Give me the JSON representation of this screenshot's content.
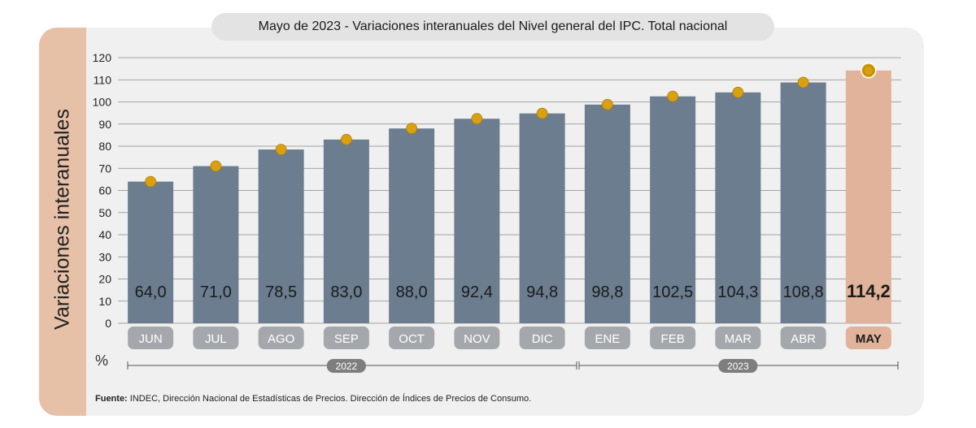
{
  "title": "Mayo de 2023 - Variaciones interanuales del Nivel general del IPC. Total nacional",
  "footer": {
    "label": "Fuente:",
    "text": " INDEC, Dirección Nacional de Estadísticas de Precios. Dirección de Índices de Precios de Consumo."
  },
  "chart_data": {
    "type": "bar",
    "title": "Mayo de 2023 - Variaciones interanuales del Nivel general del IPC. Total nacional",
    "ylabel": "Variaciones interanuales",
    "yunit": "%",
    "xlabel": "",
    "ylim": [
      0,
      120
    ],
    "yticks": [
      0,
      10,
      20,
      30,
      40,
      50,
      60,
      70,
      80,
      90,
      100,
      110,
      120
    ],
    "categories": [
      "JUN",
      "JUL",
      "AGO",
      "SEP",
      "OCT",
      "NOV",
      "DIC",
      "ENE",
      "FEB",
      "MAR",
      "ABR",
      "MAY"
    ],
    "values": [
      64.0,
      71.0,
      78.5,
      83.0,
      88.0,
      92.4,
      94.8,
      98.8,
      102.5,
      104.3,
      108.8,
      114.2
    ],
    "value_labels": [
      "64,0",
      "71,0",
      "78,5",
      "83,0",
      "88,0",
      "92,4",
      "94,8",
      "98,8",
      "102,5",
      "104,3",
      "108,8",
      "114,2"
    ],
    "highlight_index": 11,
    "groups": [
      {
        "label": "2022",
        "from": 0,
        "to": 6
      },
      {
        "label": "2023",
        "from": 7,
        "to": 11
      }
    ],
    "grid": true,
    "colors": {
      "bar": "#6c7d8f",
      "bar_highlight": "#e0b39a",
      "marker": "#d9a012",
      "marker_stroke": "#b07e00",
      "pill": "#a4a8ad",
      "group_pill": "#7e7e7e",
      "grid": "#8a8a8a"
    }
  }
}
